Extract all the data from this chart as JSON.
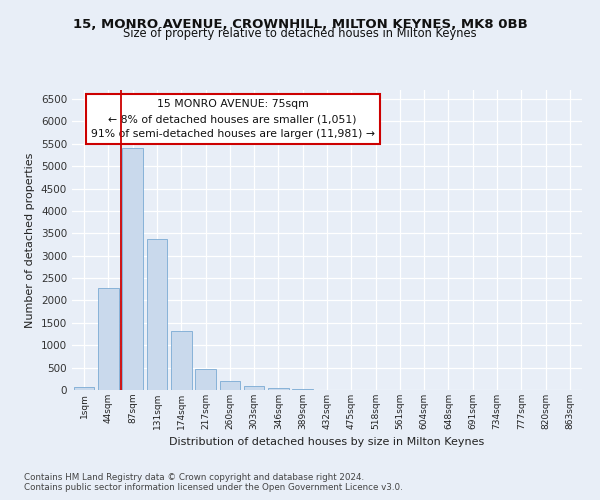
{
  "title1": "15, MONRO AVENUE, CROWNHILL, MILTON KEYNES, MK8 0BB",
  "title2": "Size of property relative to detached houses in Milton Keynes",
  "xlabel": "Distribution of detached houses by size in Milton Keynes",
  "ylabel": "Number of detached properties",
  "bar_labels": [
    "1sqm",
    "44sqm",
    "87sqm",
    "131sqm",
    "174sqm",
    "217sqm",
    "260sqm",
    "303sqm",
    "346sqm",
    "389sqm",
    "432sqm",
    "475sqm",
    "518sqm",
    "561sqm",
    "604sqm",
    "648sqm",
    "691sqm",
    "734sqm",
    "777sqm",
    "820sqm",
    "863sqm"
  ],
  "bar_values": [
    75,
    2280,
    5400,
    3380,
    1310,
    480,
    195,
    90,
    50,
    25,
    5,
    5,
    0,
    0,
    0,
    0,
    0,
    0,
    0,
    0,
    0
  ],
  "bar_color": "#c9d9ec",
  "bar_edge_color": "#7aaad4",
  "highlight_color": "#cc0000",
  "annotation_title": "15 MONRO AVENUE: 75sqm",
  "annotation_line1": "← 8% of detached houses are smaller (1,051)",
  "annotation_line2": "91% of semi-detached houses are larger (11,981) →",
  "ylim": [
    0,
    6700
  ],
  "yticks": [
    0,
    500,
    1000,
    1500,
    2000,
    2500,
    3000,
    3500,
    4000,
    4500,
    5000,
    5500,
    6000,
    6500
  ],
  "footer1": "Contains HM Land Registry data © Crown copyright and database right 2024.",
  "footer2": "Contains public sector information licensed under the Open Government Licence v3.0.",
  "bg_color": "#e8eef7",
  "plot_bg_color": "#e8eef7"
}
